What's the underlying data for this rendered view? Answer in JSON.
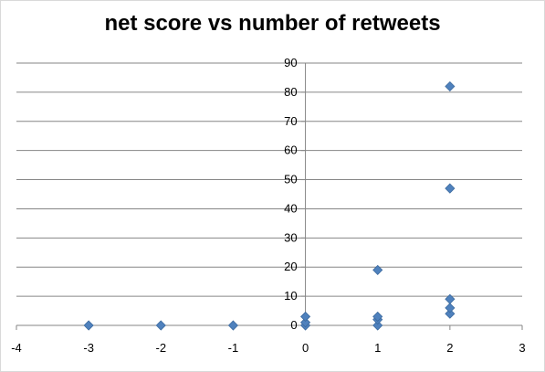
{
  "chart_data": {
    "type": "scatter",
    "title": "net score vs number of retweets",
    "xlabel": "",
    "ylabel": "",
    "xlim": [
      -4,
      3
    ],
    "ylim": [
      0,
      90
    ],
    "x_ticks": [
      -4,
      -3,
      -2,
      -1,
      0,
      1,
      2,
      3
    ],
    "y_ticks": [
      0,
      10,
      20,
      30,
      40,
      50,
      60,
      70,
      80,
      90
    ],
    "grid": "horizontal",
    "legend": "none",
    "marker": "diamond",
    "color": "#4F81BD",
    "series": [
      {
        "points": [
          {
            "x": -3,
            "y": 0
          },
          {
            "x": -2,
            "y": 0
          },
          {
            "x": -1,
            "y": 0
          },
          {
            "x": 0,
            "y": 0
          },
          {
            "x": 0,
            "y": 1
          },
          {
            "x": 0,
            "y": 3
          },
          {
            "x": 1,
            "y": 0
          },
          {
            "x": 1,
            "y": 2
          },
          {
            "x": 1,
            "y": 3
          },
          {
            "x": 1,
            "y": 19
          },
          {
            "x": 2,
            "y": 4
          },
          {
            "x": 2,
            "y": 6
          },
          {
            "x": 2,
            "y": 9
          },
          {
            "x": 2,
            "y": 47
          },
          {
            "x": 2,
            "y": 82
          }
        ]
      }
    ]
  }
}
